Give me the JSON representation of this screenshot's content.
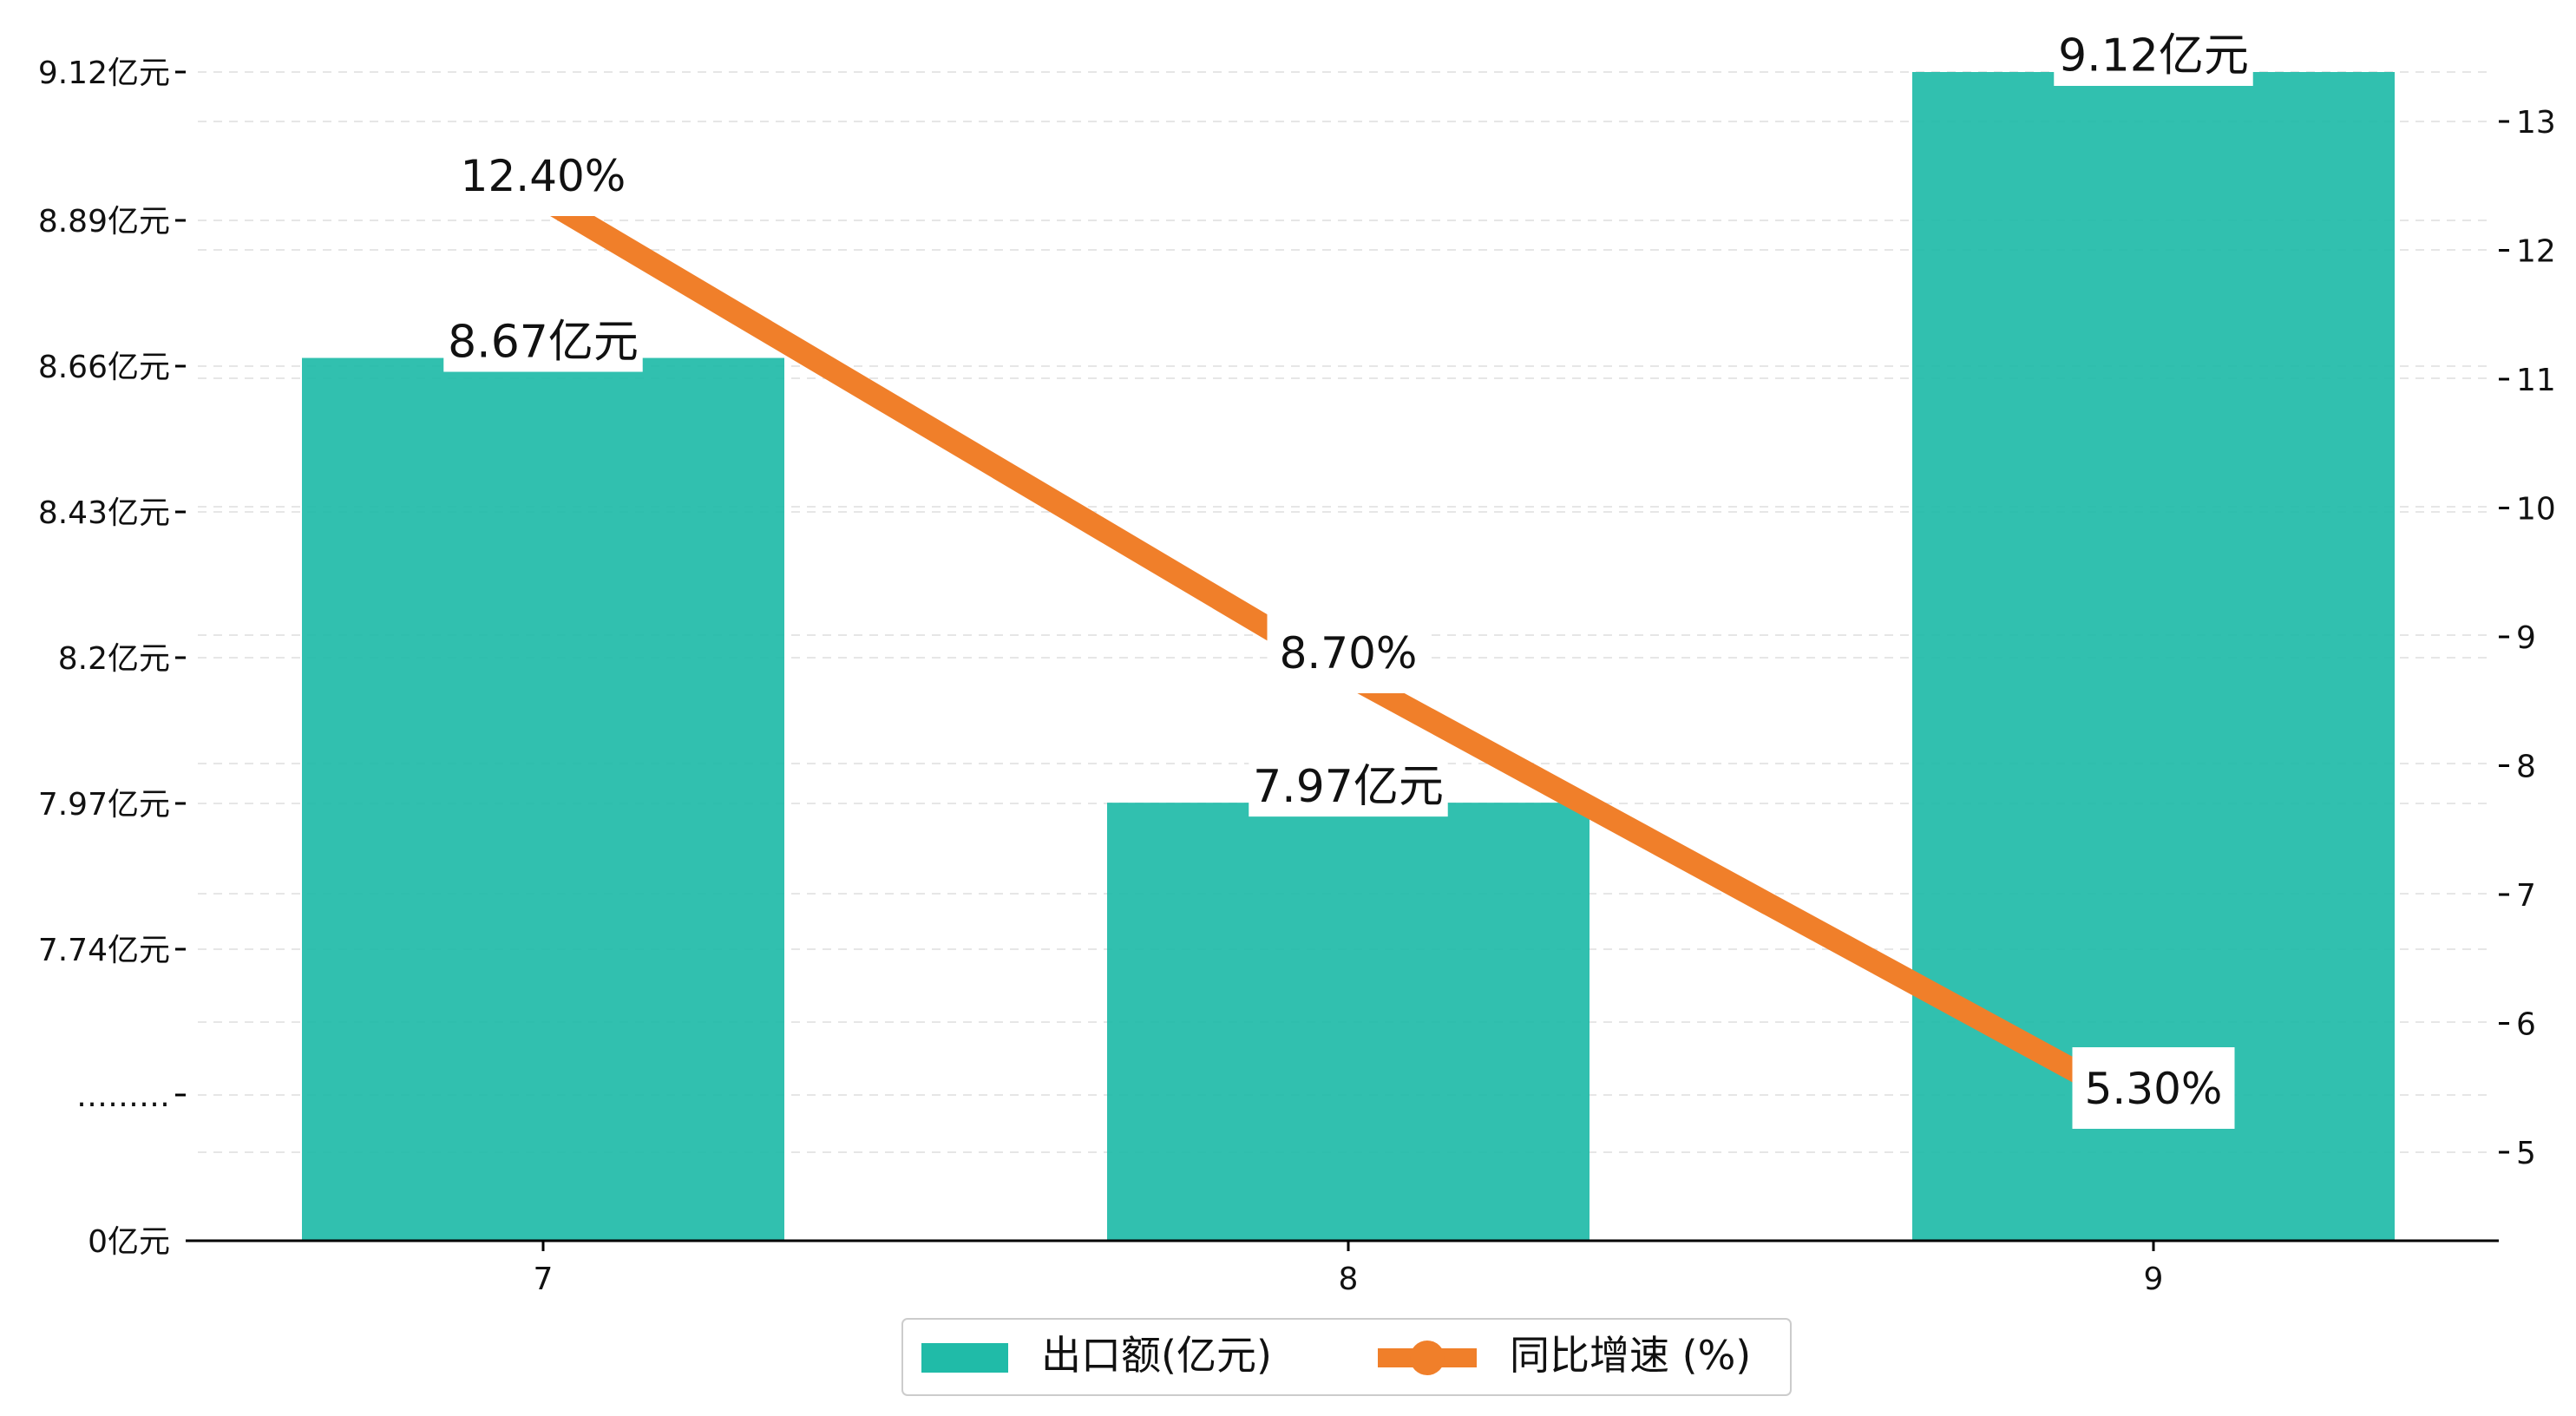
{
  "chart_data": {
    "type": "bar",
    "categories": [
      "7",
      "8",
      "9"
    ],
    "series": [
      {
        "name": "出口额(亿元)",
        "type": "bar",
        "axis": "left",
        "color": "#20BBA8",
        "values": [
          8.67,
          7.97,
          9.12
        ],
        "labels": [
          "8.67亿元",
          "7.97亿元",
          "9.12亿元"
        ]
      },
      {
        "name": "同比增速 (%)",
        "type": "line",
        "axis": "right",
        "color": "#F07F2A",
        "values": [
          12.4,
          8.7,
          5.3
        ],
        "labels": [
          "12.40%",
          "8.70%",
          "5.30%"
        ]
      }
    ],
    "left_axis": {
      "ticks": [
        "0亿元",
        "………",
        "7.74亿元",
        "7.97亿元",
        "8.2亿元",
        "8.43亿元",
        "8.66亿元",
        "8.89亿元",
        "9.12亿元"
      ],
      "broken": true,
      "segment_range": [
        7.51,
        9.12
      ]
    },
    "right_axis": {
      "ticks": [
        "5",
        "6",
        "7",
        "8",
        "9",
        "10",
        "11",
        "12",
        "13"
      ],
      "ylim": [
        4.3,
        13.9
      ]
    },
    "grid": "horizontal-dashed",
    "legend_position": "bottom-center"
  }
}
